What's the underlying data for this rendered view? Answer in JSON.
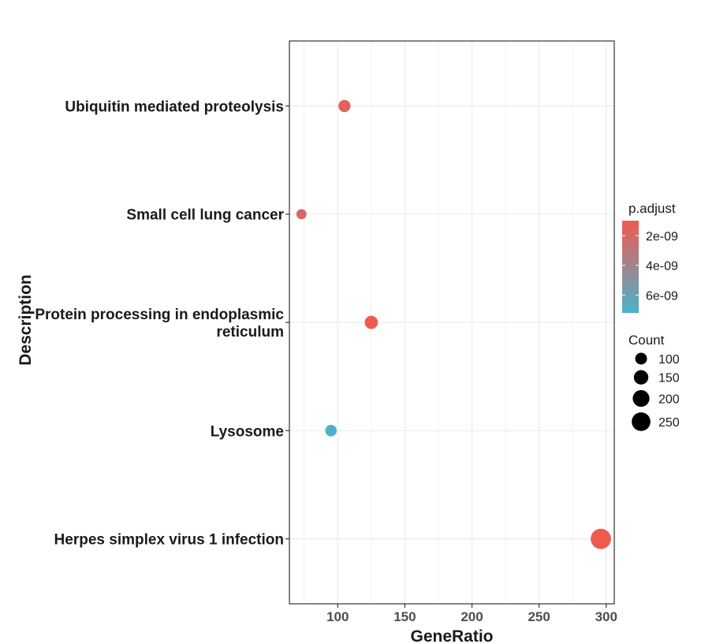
{
  "chart_data": {
    "type": "scatter",
    "xlabel": "GeneRatio",
    "ylabel": "Description",
    "xlim": [
      64,
      306
    ],
    "x_ticks": [
      100,
      150,
      200,
      250,
      300
    ],
    "grid": true,
    "legend_position": "right",
    "categories": [
      "Herpes simplex virus 1 infection",
      "Lysosome",
      "Protein processing in endoplasmic reticulum",
      "Small cell lung cancer",
      "Ubiquitin mediated proteolysis"
    ],
    "category_lines": [
      [
        "Herpes simplex virus 1 infection"
      ],
      [
        "Lysosome"
      ],
      [
        "Protein processing in endoplasmic",
        "reticulum"
      ],
      [
        "Small cell lung cancer"
      ],
      [
        "Ubiquitin mediated proteolysis"
      ]
    ],
    "points": [
      {
        "category": "Ubiquitin mediated proteolysis",
        "x": 105,
        "count": 105,
        "p_adjust": 1.5e-09
      },
      {
        "category": "Small cell lung cancer",
        "x": 73,
        "count": 73,
        "p_adjust": 2e-09
      },
      {
        "category": "Protein processing in endoplasmic reticulum",
        "x": 125,
        "count": 125,
        "p_adjust": 1e-09
      },
      {
        "category": "Lysosome",
        "x": 95,
        "count": 95,
        "p_adjust": 7.2e-09
      },
      {
        "category": "Herpes simplex virus 1 infection",
        "x": 296,
        "count": 296,
        "p_adjust": 1e-09
      }
    ],
    "color_legend": {
      "title": "p.adjust",
      "low_color": "#ef5a4f",
      "high_color": "#4cb2cc",
      "range": [
        1e-09,
        7.2e-09
      ],
      "labels": [
        "2e-09",
        "4e-09",
        "6e-09"
      ],
      "values": [
        2e-09,
        4e-09,
        6e-09
      ]
    },
    "size_legend": {
      "title": "Count",
      "labels": [
        "100",
        "150",
        "200",
        "250"
      ],
      "values": [
        100,
        150,
        200,
        250
      ]
    },
    "colors": {
      "grid": "#ebebeb",
      "panel_border": "#333333",
      "tick_text": "#4d4d4d",
      "text": "#1a1a1a",
      "size_key": "#000000"
    }
  }
}
